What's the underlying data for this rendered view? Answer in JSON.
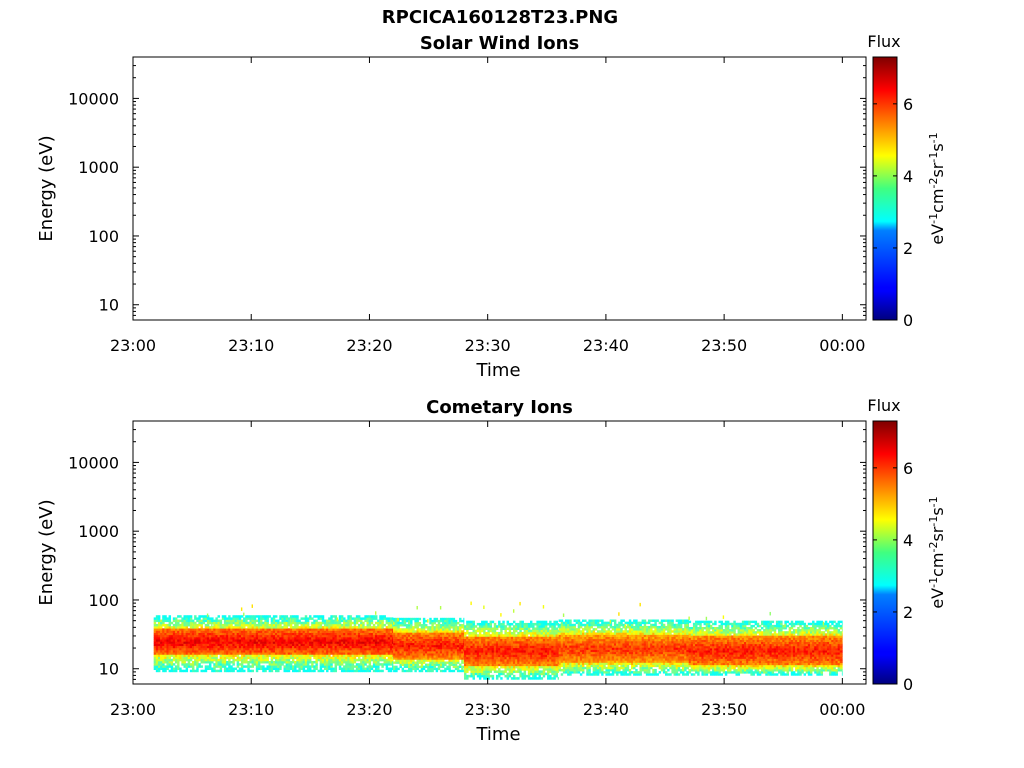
{
  "figure_title": "RPCICA160128T23.PNG",
  "chart_data": [
    {
      "type": "heatmap",
      "title": "Solar Wind Ions",
      "xlabel": "Time",
      "ylabel": "Energy (eV)",
      "x_ticks": [
        "23:00",
        "23:10",
        "23:20",
        "23:30",
        "23:40",
        "23:50",
        "00:00"
      ],
      "x_range_minutes": [
        0,
        62
      ],
      "y_scale": "log",
      "y_ticks": [
        10,
        100,
        1000,
        10000
      ],
      "y_tick_labels": [
        "10",
        "100",
        "1000",
        "10000"
      ],
      "ylim": [
        6,
        40000
      ],
      "colorbar": {
        "title": "Flux",
        "unit": "eV-1cm-2sr-1s-1",
        "range": [
          0,
          7.3
        ],
        "ticks": [
          0,
          2,
          4,
          6
        ],
        "colormap": "jet"
      },
      "data": []
    },
    {
      "type": "heatmap",
      "title": "Cometary Ions",
      "xlabel": "Time",
      "ylabel": "Energy (eV)",
      "x_ticks": [
        "23:00",
        "23:10",
        "23:20",
        "23:30",
        "23:40",
        "23:50",
        "00:00"
      ],
      "x_range_minutes": [
        0,
        62
      ],
      "y_scale": "log",
      "y_ticks": [
        10,
        100,
        1000,
        10000
      ],
      "y_tick_labels": [
        "10",
        "100",
        "1000",
        "10000"
      ],
      "ylim": [
        6,
        40000
      ],
      "colorbar": {
        "title": "Flux",
        "unit": "eV-1cm-2sr-1s-1",
        "range": [
          0,
          7.3
        ],
        "ticks": [
          0,
          2,
          4,
          6
        ],
        "colormap": "jet"
      },
      "data": {
        "time_start": "23:01:45",
        "time_end": "00:00",
        "band_segments": [
          {
            "from": "23:01:45",
            "to": "23:22",
            "core_energy_eV": [
              16,
              38
            ],
            "edge_energy_eV": [
              9,
              60
            ],
            "peak_flux": 6.8
          },
          {
            "from": "23:22",
            "to": "23:28",
            "core_energy_eV": [
              14,
              34
            ],
            "edge_energy_eV": [
              9,
              55
            ],
            "peak_flux": 6.6
          },
          {
            "from": "23:28",
            "to": "23:36",
            "core_energy_eV": [
              11,
              30
            ],
            "edge_energy_eV": [
              7,
              50
            ],
            "peak_flux": 6.6
          },
          {
            "from": "23:36",
            "to": "23:47",
            "core_energy_eV": [
              12,
              32
            ],
            "edge_energy_eV": [
              8,
              52
            ],
            "peak_flux": 6.4
          },
          {
            "from": "23:47",
            "to": "00:00",
            "core_energy_eV": [
              11,
              30
            ],
            "edge_energy_eV": [
              8,
              50
            ],
            "peak_flux": 6.6
          }
        ],
        "sparse_high_energy_flux_eV": [
          40,
          90
        ]
      }
    }
  ]
}
